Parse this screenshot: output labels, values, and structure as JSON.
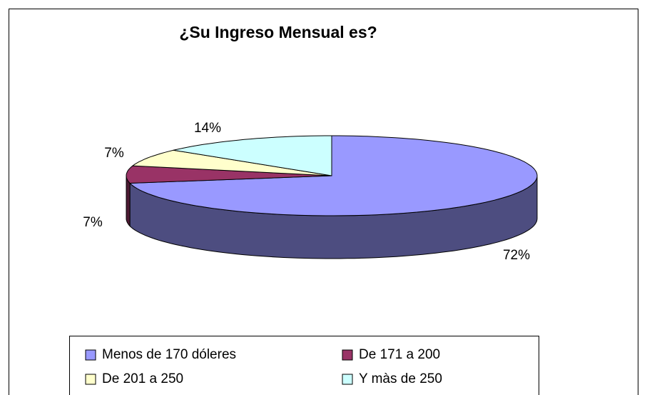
{
  "chart_data": {
    "type": "pie3d",
    "title": "¿Su Ingreso  Mensual  es?",
    "categories": [
      "Menos de 170 dóleres",
      "De 171 a 200",
      "De 201  a 250",
      "Y màs de 250"
    ],
    "values": [
      72,
      7,
      7,
      14
    ],
    "value_labels": [
      "72%",
      "7%",
      "7%",
      "14%"
    ],
    "colors": [
      "#9999ff",
      "#993366",
      "#ffffcc",
      "#ccffff"
    ],
    "legend": "bottom"
  }
}
